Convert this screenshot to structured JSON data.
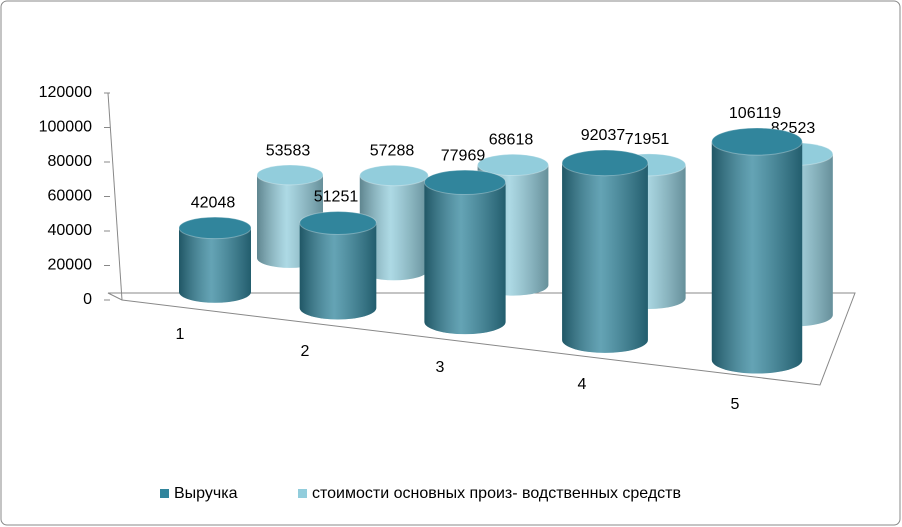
{
  "chart_data": {
    "type": "bar3d",
    "categories": [
      "1",
      "2",
      "3",
      "4",
      "5"
    ],
    "series": [
      {
        "name": "Выручка",
        "color": "#31859c",
        "values": [
          42048,
          51251,
          77969,
          92037,
          106119
        ]
      },
      {
        "name": "стоимости основных произ- водственных средств",
        "color": "#92cddc",
        "values": [
          53583,
          57288,
          68618,
          71951,
          82523
        ]
      }
    ],
    "ylim": [
      0,
      120000
    ],
    "yticks": [
      0,
      20000,
      40000,
      60000,
      80000,
      100000,
      120000
    ],
    "legend": "bottom"
  }
}
